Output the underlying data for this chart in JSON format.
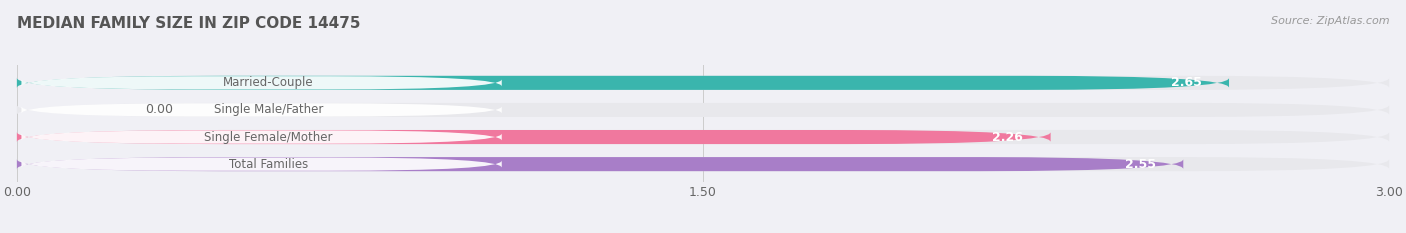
{
  "title": "MEDIAN FAMILY SIZE IN ZIP CODE 14475",
  "source": "Source: ZipAtlas.com",
  "categories": [
    "Married-Couple",
    "Single Male/Father",
    "Single Female/Mother",
    "Total Families"
  ],
  "values": [
    2.65,
    0.0,
    2.26,
    2.55
  ],
  "bar_colors": [
    "#3ab5ad",
    "#a8bfe0",
    "#f0789e",
    "#a87ec8"
  ],
  "bar_bg_color": "#e8e8ec",
  "xlim": [
    0,
    3.0
  ],
  "xticks": [
    0.0,
    1.5,
    3.0
  ],
  "label_color": "#666666",
  "title_color": "#555555",
  "bg_color": "#f0f0f5",
  "bar_height": 0.52,
  "bar_gap": 0.48,
  "figsize": [
    14.06,
    2.33
  ],
  "dpi": 100
}
